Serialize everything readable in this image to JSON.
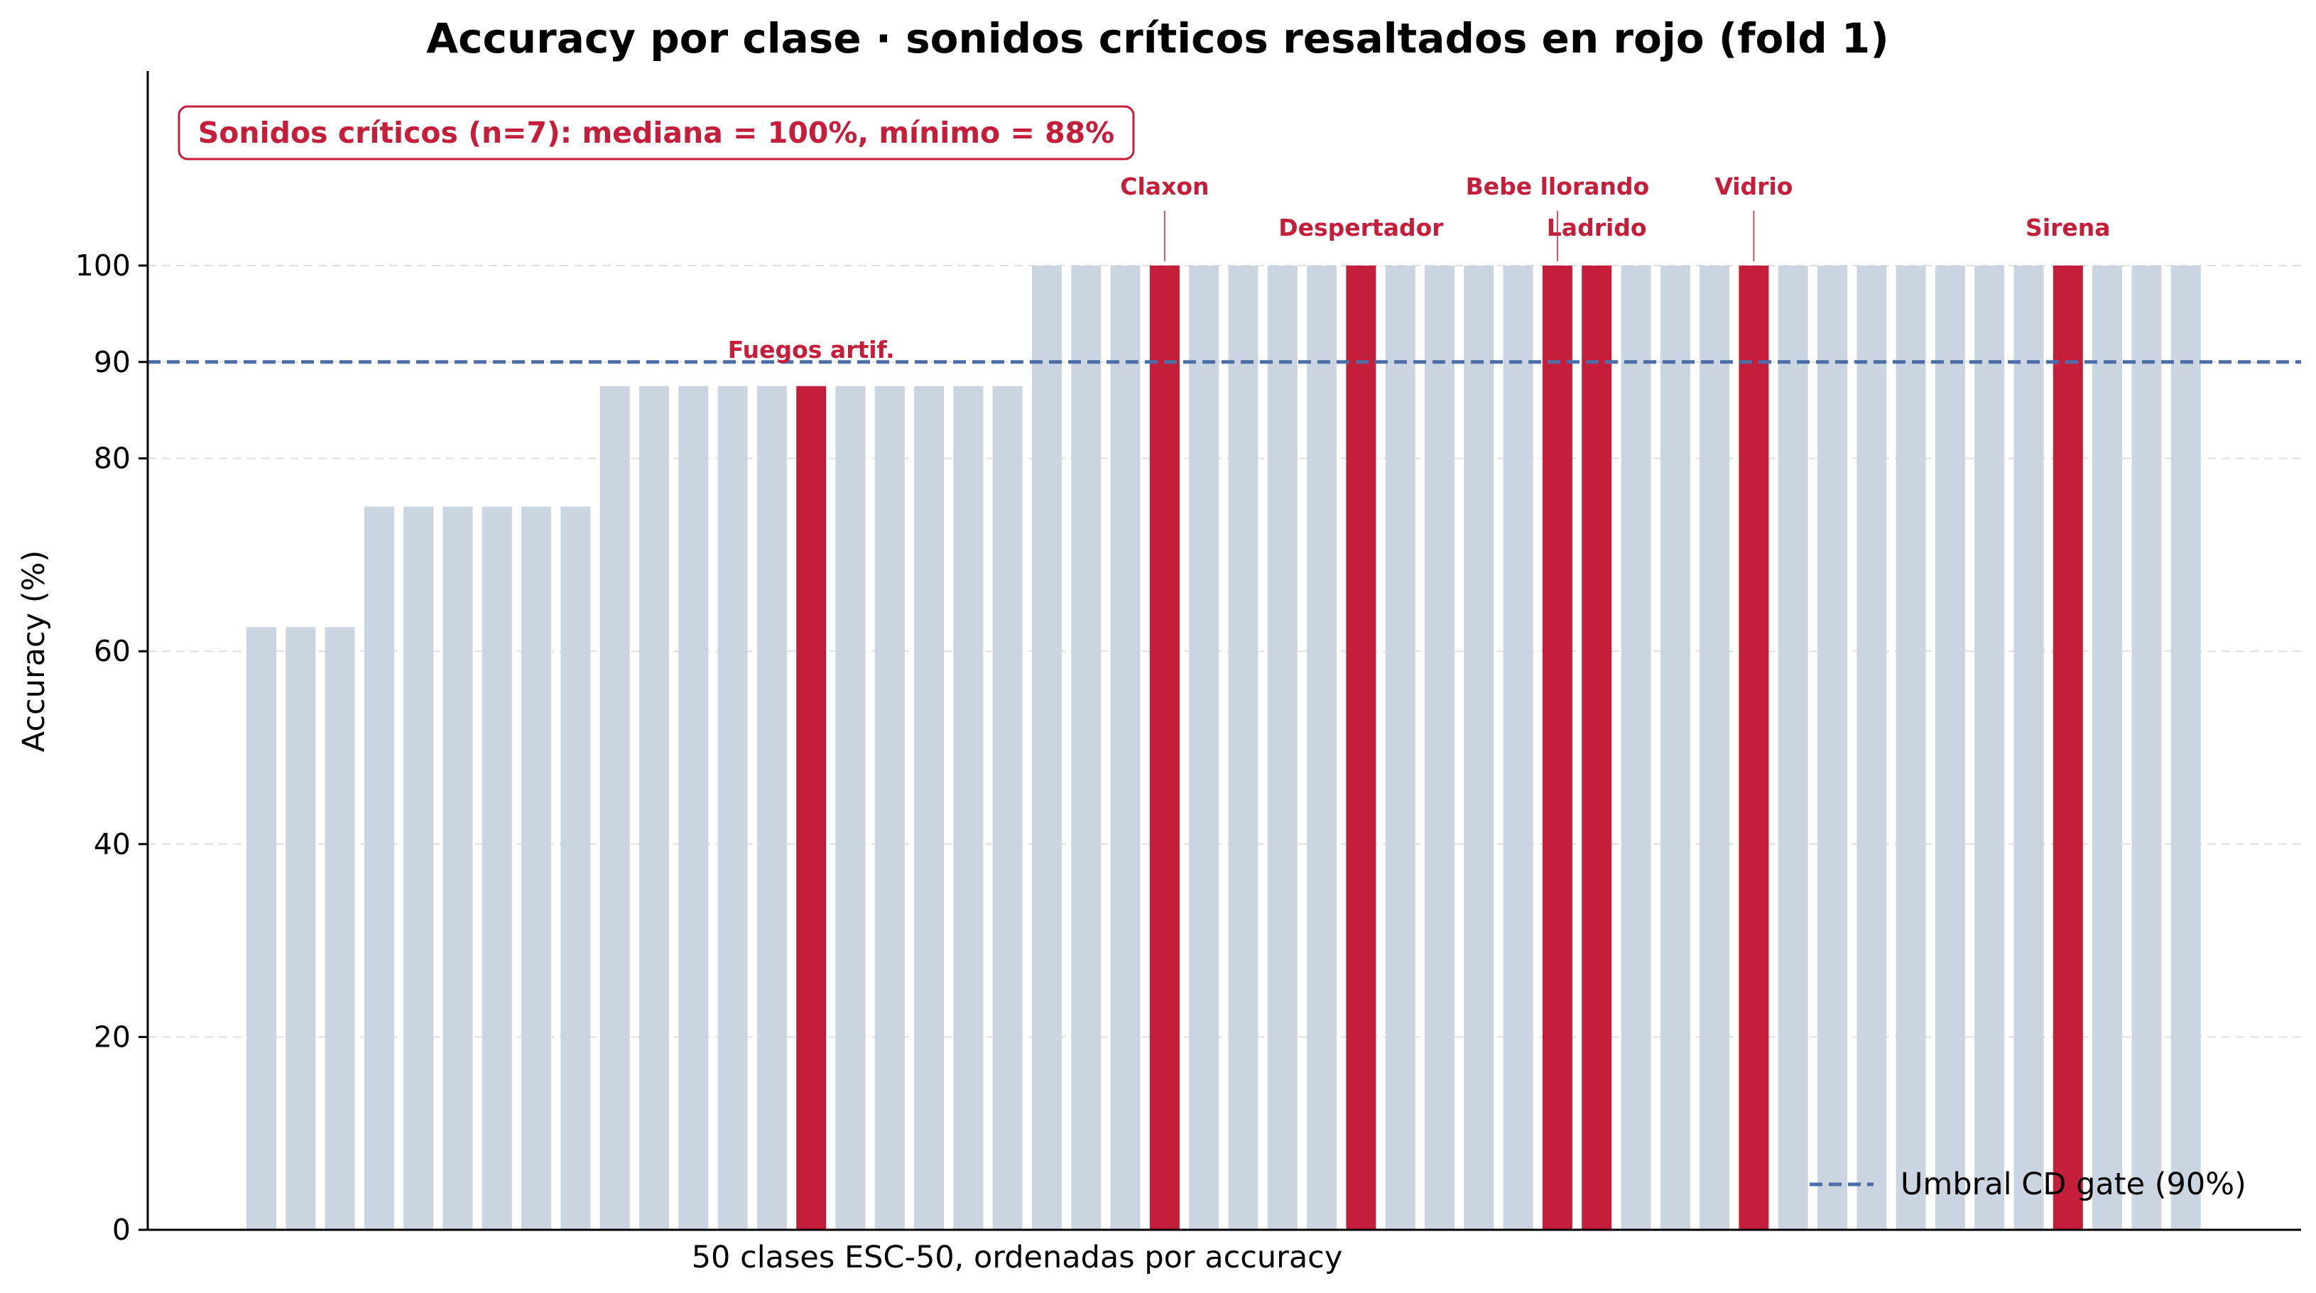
{
  "chart_data": {
    "type": "bar",
    "title": "Accuracy por clase · sonidos críticos resaltados en rojo (fold 1)",
    "xlabel": "50 clases ESC-50, ordenadas por accuracy",
    "ylabel": "Accuracy (%)",
    "ylim": [
      0,
      100
    ],
    "yticks": [
      0,
      20,
      40,
      60,
      80,
      90,
      100
    ],
    "grid": "horizontal dashed",
    "values": [
      62.5,
      62.5,
      62.5,
      75,
      75,
      75,
      75,
      75,
      75,
      87.5,
      87.5,
      87.5,
      87.5,
      87.5,
      87.5,
      87.5,
      87.5,
      87.5,
      87.5,
      87.5,
      100,
      100,
      100,
      100,
      100,
      100,
      100,
      100,
      100,
      100,
      100,
      100,
      100,
      100,
      100,
      100,
      100,
      100,
      100,
      100,
      100,
      100,
      100,
      100,
      100,
      100,
      100,
      100,
      100,
      100
    ],
    "critical": [
      {
        "index": 14,
        "label": "Fuegos artif."
      },
      {
        "index": 23,
        "label": "Claxon"
      },
      {
        "index": 28,
        "label": "Despertador"
      },
      {
        "index": 33,
        "label": "Bebe llorando"
      },
      {
        "index": 34,
        "label": "Ladrido"
      },
      {
        "index": 38,
        "label": "Vidrio"
      },
      {
        "index": 46,
        "label": "Sirena"
      }
    ],
    "threshold": {
      "value": 90,
      "label": "Umbral CD gate (90%)"
    },
    "summary": "Sonidos críticos (n=7): mediana = 100%, mínimo = 88%",
    "legend_position": "lower-right",
    "colors": {
      "normal_bar": "#cbd5e1",
      "critical_bar": "#c41e3a",
      "threshold": "#4c6ea8",
      "grid": "#e0e0e0",
      "axis": "#000000"
    }
  }
}
